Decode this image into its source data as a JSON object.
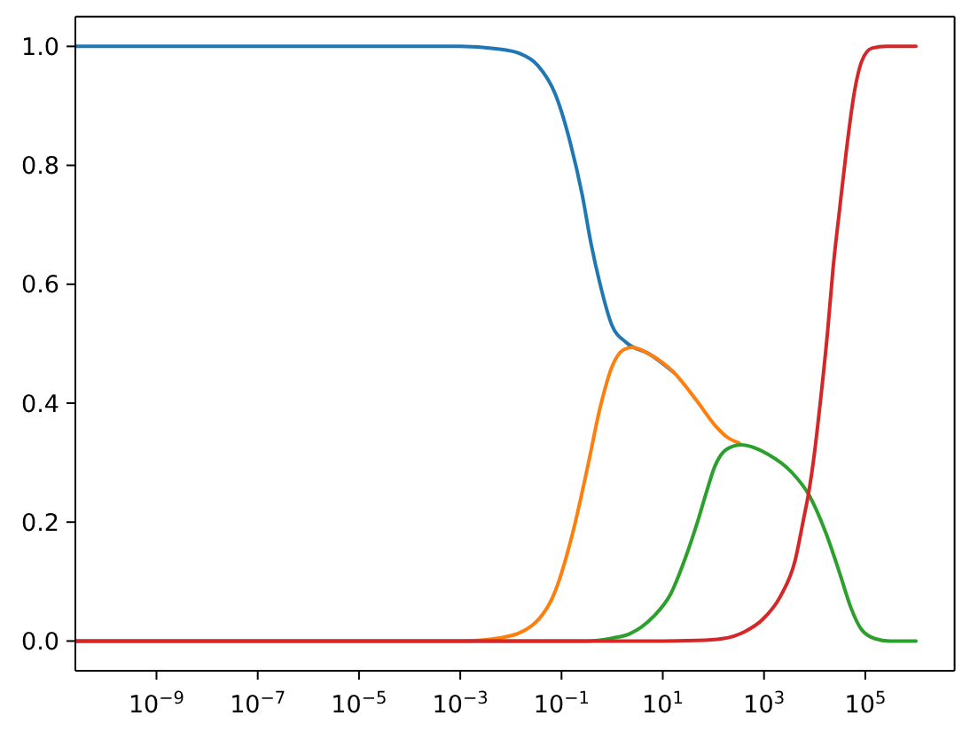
{
  "chart_data": {
    "type": "line",
    "log": "x",
    "xlim": [
      2.5e-11,
      5800000.0
    ],
    "xticks": [
      {
        "value": 1e-09,
        "label": "10$^{−9}$"
      },
      {
        "value": 1e-07,
        "label": "10$^{−7}$"
      },
      {
        "value": 1e-05,
        "label": "10$^{−5}$"
      },
      {
        "value": 0.001,
        "label": "10$^{−3}$"
      },
      {
        "value": 0.1,
        "label": "10$^{−1}$"
      },
      {
        "value": 10,
        "label": "10$^{1}$"
      },
      {
        "value": 1000,
        "label": "10$^{3}$"
      },
      {
        "value": 100000,
        "label": "10$^{5}$"
      }
    ],
    "ylim": [
      -0.05,
      1.05
    ],
    "yticks": [
      {
        "value": 0,
        "label": "0.0"
      },
      0.2,
      0.4,
      0.6,
      0.8,
      {
        "value": 1,
        "label": "1.0"
      }
    ],
    "line_style": "solid",
    "series": [
      {
        "color": "#1f77b4",
        "x": [
          2.5e-11,
          0.0001,
          0.001,
          0.0051,
          0.015,
          0.034,
          0.076,
          0.148,
          0.257,
          0.38,
          0.575,
          0.98,
          1.9,
          5.6,
          16.4
        ],
        "values": [
          1.0,
          1.0,
          1.0,
          0.996,
          0.988,
          0.968,
          0.919,
          0.839,
          0.75,
          0.67,
          0.601,
          0.532,
          0.502,
          0.482,
          0.452
        ]
      },
      {
        "color": "#ff7f0e",
        "x": [
          2.5e-11,
          0.001,
          0.0068,
          0.026,
          0.076,
          0.17,
          0.33,
          0.58,
          1,
          1.7,
          2.5,
          5.6,
          16.4,
          48,
          107,
          186,
          320
        ],
        "values": [
          0,
          0,
          0.006,
          0.026,
          0.085,
          0.185,
          0.294,
          0.393,
          0.462,
          0.49,
          0.494,
          0.482,
          0.452,
          0.403,
          0.363,
          0.343,
          0.333
        ]
      },
      {
        "color": "#2ca02c",
        "x": [
          2.5e-11,
          0.32,
          1,
          2.2,
          6.5,
          14.5,
          28,
          48,
          72,
          107,
          186,
          360,
          1200,
          3500,
          7800,
          16600,
          31000,
          52000,
          83000,
          155000,
          300000,
          1000000
        ],
        "values": [
          0,
          0,
          0.005,
          0.012,
          0.041,
          0.08,
          0.14,
          0.199,
          0.249,
          0.294,
          0.323,
          0.33,
          0.314,
          0.284,
          0.245,
          0.182,
          0.115,
          0.056,
          0.02,
          0.004,
          0,
          0
        ]
      },
      {
        "color": "#d62728",
        "x": [
          2.5e-11,
          10,
          48,
          150,
          420,
          930,
          2100,
          4100,
          6000,
          7600,
          9800,
          12600,
          18000,
          23000,
          31000,
          43000,
          60000,
          85000,
          135000,
          260000,
          1000000
        ],
        "values": [
          0,
          0,
          0.001,
          0.004,
          0.016,
          0.036,
          0.075,
          0.135,
          0.204,
          0.249,
          0.313,
          0.393,
          0.52,
          0.625,
          0.725,
          0.83,
          0.92,
          0.975,
          0.997,
          1.0,
          1.0
        ]
      }
    ]
  }
}
